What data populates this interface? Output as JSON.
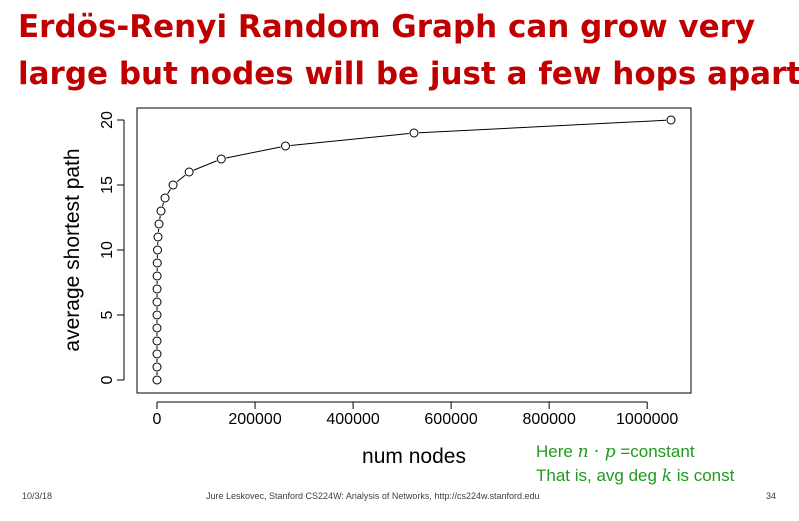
{
  "slide": {
    "title_line1": "Erdös-Renyi Random Graph can grow very",
    "title_line2": "large but nodes will be just a few hops apart",
    "title_color": "#c00000"
  },
  "note": {
    "line1_prefix": "Here ",
    "line1_math": "n · p",
    "line1_suffix": " =constant",
    "line2_prefix": "That is, avg deg ",
    "line2_math": "k",
    "line2_suffix": " is const",
    "color": "#1f9a1f"
  },
  "footer": {
    "date": "10/3/18",
    "credit": "Jure Leskovec, Stanford CS224W: Analysis of Networks, http://cs224w.stanford.edu",
    "page": "34"
  },
  "chart_data": {
    "type": "line",
    "markers": "open-circle",
    "xlabel": "num nodes",
    "ylabel": "average shortest path",
    "xlim": [
      0,
      1048576
    ],
    "ylim": [
      0,
      20
    ],
    "xticks": [
      0,
      200000,
      400000,
      600000,
      800000,
      1000000
    ],
    "yticks": [
      0,
      5,
      10,
      15,
      20
    ],
    "grid": false,
    "series": [
      {
        "x": [
          1,
          2,
          4,
          8,
          16,
          32,
          64,
          128,
          256,
          512,
          1024,
          2048,
          4096,
          8192,
          16384,
          32768,
          65536,
          131072,
          262144,
          524288,
          1048576
        ],
        "y": [
          0,
          1,
          2,
          3,
          4,
          5,
          6,
          7,
          8,
          9,
          10,
          11,
          12,
          13,
          14,
          15,
          16,
          17,
          18,
          19,
          20
        ]
      }
    ]
  }
}
